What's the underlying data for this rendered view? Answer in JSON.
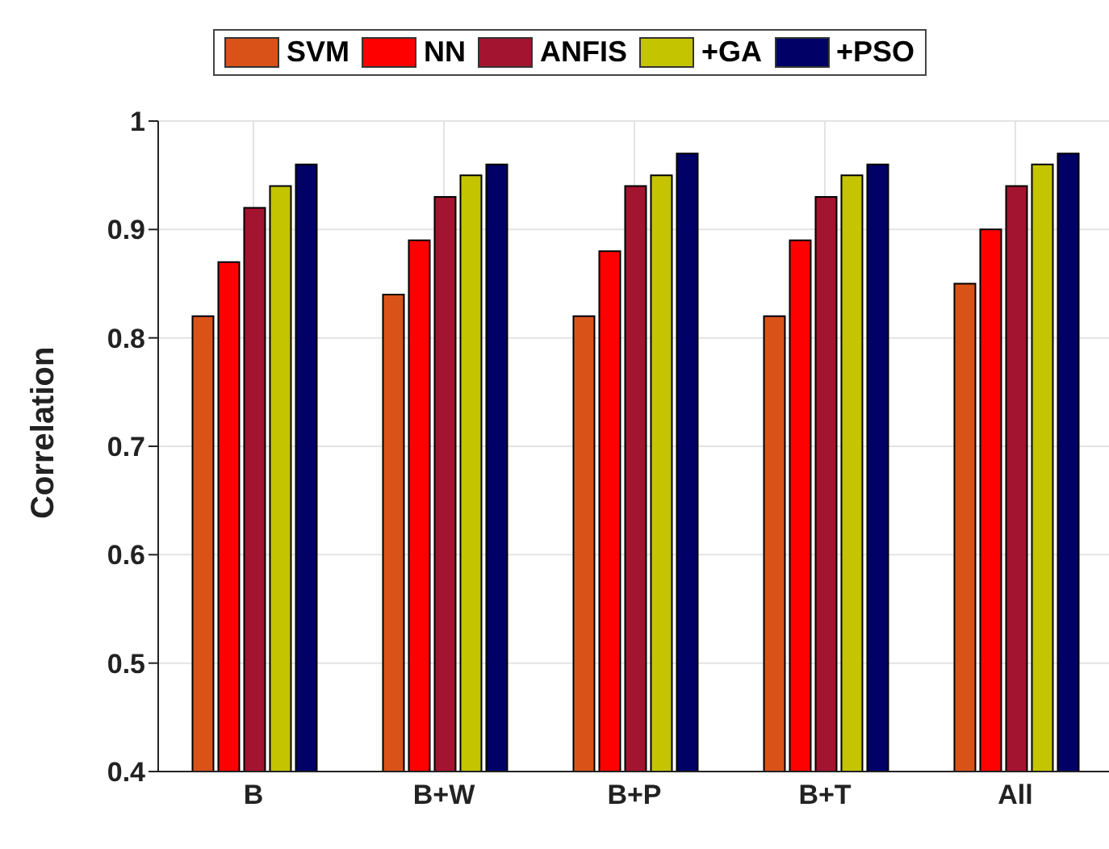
{
  "chart_data": {
    "type": "bar",
    "ylabel": "Correlation",
    "categories": [
      "B",
      "B+W",
      "B+P",
      "B+T",
      "All"
    ],
    "series": [
      {
        "name": "SVM",
        "color": "#d95319",
        "values": [
          0.82,
          0.84,
          0.82,
          0.82,
          0.85
        ]
      },
      {
        "name": "NN",
        "color": "#ff0000",
        "values": [
          0.87,
          0.89,
          0.88,
          0.89,
          0.9
        ]
      },
      {
        "name": "ANFIS",
        "color": "#a2142f",
        "values": [
          0.92,
          0.93,
          0.94,
          0.93,
          0.94
        ]
      },
      {
        "name": "+GA",
        "color": "#c4c400",
        "values": [
          0.94,
          0.95,
          0.95,
          0.95,
          0.96
        ]
      },
      {
        "name": "+PSO",
        "color": "#000066",
        "values": [
          0.96,
          0.96,
          0.97,
          0.96,
          0.97
        ]
      }
    ],
    "ylim": [
      0.4,
      1
    ],
    "yticks": [
      0.4,
      0.5,
      0.6,
      0.7,
      0.8,
      0.9,
      1
    ],
    "grid": true,
    "legend": "top"
  }
}
